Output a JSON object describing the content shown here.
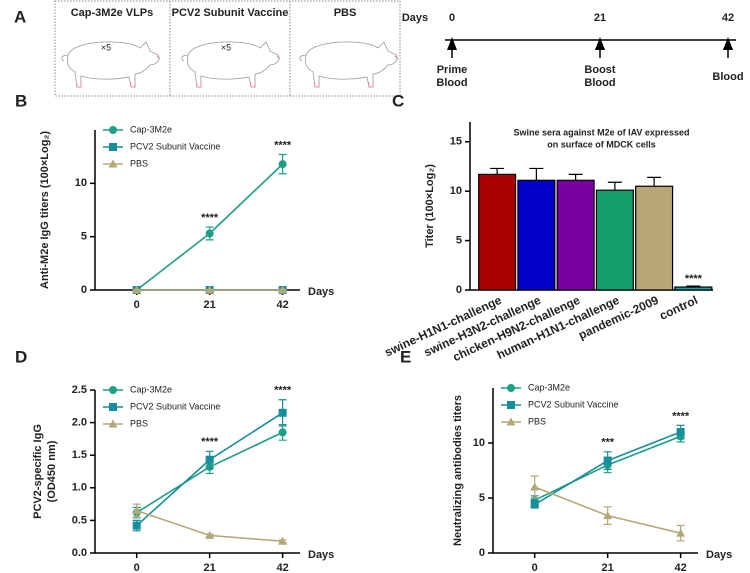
{
  "panel_a": {
    "label": "A",
    "groups": [
      {
        "name": "Cap-3M2e VLPs",
        "doses": "×5"
      },
      {
        "name": "PCV2 Subunit Vaccine",
        "doses": "×5"
      },
      {
        "name": "PBS"
      }
    ],
    "timeline": {
      "axis_label": "Days",
      "points": [
        {
          "day": "0",
          "event": [
            "Prime",
            "Blood"
          ]
        },
        {
          "day": "21",
          "event": [
            "Boost",
            "Blood"
          ]
        },
        {
          "day": "42",
          "event": [
            "Blood"
          ]
        }
      ]
    }
  },
  "chart_data": [
    {
      "type": "line",
      "panel": "B",
      "ylabel": [
        "Anti-M2e IgG titers (100×Log₂)"
      ],
      "xlabel": "Days",
      "x": [
        0,
        21,
        42
      ],
      "xlim": [
        -12,
        47
      ],
      "xticks": [
        0,
        21,
        42
      ],
      "ylim": [
        0,
        15
      ],
      "yticks": [
        0,
        5,
        10
      ],
      "legend": "upper left",
      "series": [
        {
          "name": "Cap-3M2e",
          "color": "#1e9e86",
          "marker": "circle",
          "values": [
            0,
            5.3,
            11.8
          ],
          "errors": [
            0.1,
            0.6,
            0.9
          ]
        },
        {
          "name": "PCV2 Subunit Vaccine",
          "color": "#168e9c",
          "marker": "square",
          "values": [
            0,
            0,
            0
          ],
          "errors": [
            0.05,
            0.05,
            0.05
          ]
        },
        {
          "name": "PBS",
          "color": "#b5a878",
          "marker": "triangle",
          "values": [
            0,
            0,
            0
          ],
          "errors": [
            0.05,
            0.05,
            0.05
          ]
        }
      ],
      "annotations": [
        {
          "x": 21,
          "text": "****"
        },
        {
          "x": 42,
          "text": "****"
        }
      ]
    },
    {
      "type": "bar",
      "panel": "C",
      "title": [
        "Swine sera against M2e of IAV expressed",
        "on surface of MDCK cells"
      ],
      "ylabel": [
        "Titer (100×Log₂)"
      ],
      "categories": [
        "swine-H1N1-challenge",
        "swine-H3N2-challenge",
        "chicken-H9N2-challenge",
        "human-H1N1-challenge",
        "pandemic-2009",
        "control"
      ],
      "values": [
        11.7,
        11.1,
        11.1,
        10.1,
        10.5,
        0.3
      ],
      "errors": [
        0.6,
        1.2,
        0.6,
        0.8,
        0.9,
        0.1
      ],
      "colors": [
        "#a80000",
        "#0000c8",
        "#7800a0",
        "#159e6c",
        "#b8a878",
        "#1aa0a6"
      ],
      "ylim": [
        0,
        17
      ],
      "yticks": [
        0,
        5,
        10,
        15
      ],
      "annotations": [
        {
          "x": "control",
          "text": "****"
        }
      ]
    },
    {
      "type": "line",
      "panel": "D",
      "ylabel": [
        "PCV2-specific IgG",
        "(OD450 nm)"
      ],
      "xlabel": "Days",
      "x": [
        0,
        21,
        42
      ],
      "xlim": [
        -12,
        47
      ],
      "xticks": [
        0,
        21,
        42
      ],
      "ylim": [
        0,
        2.5
      ],
      "yticks": [
        {
          "value": 0,
          "label": "0.0"
        },
        0.5,
        {
          "value": 1,
          "label": "1.0"
        },
        1.5,
        {
          "value": 2,
          "label": "2.0"
        },
        2.5
      ],
      "legend": "upper left",
      "series": [
        {
          "name": "Cap-3M2e",
          "color": "#1e9e86",
          "marker": "circle",
          "values": [
            0.62,
            1.32,
            1.85
          ],
          "errors": [
            0.08,
            0.1,
            0.12
          ]
        },
        {
          "name": "PCV2 Subunit Vaccine",
          "color": "#168e9c",
          "marker": "square",
          "values": [
            0.42,
            1.43,
            2.15
          ],
          "errors": [
            0.08,
            0.13,
            0.2
          ]
        },
        {
          "name": "PBS",
          "color": "#b5a878",
          "marker": "triangle",
          "values": [
            0.65,
            0.27,
            0.18
          ],
          "errors": [
            0.1,
            0.02,
            0.02
          ]
        }
      ],
      "annotations": [
        {
          "x": 21,
          "text": "****"
        },
        {
          "x": 42,
          "text": "****"
        }
      ]
    },
    {
      "type": "line",
      "panel": "E",
      "ylabel": [
        "Neutralizing antibodies titers"
      ],
      "xlabel": "Days",
      "x": [
        0,
        21,
        42
      ],
      "xlim": [
        -12,
        47
      ],
      "xticks": [
        0,
        21,
        42
      ],
      "ylim": [
        0,
        15
      ],
      "yticks": [
        0,
        5,
        10
      ],
      "legend": "upper left",
      "series": [
        {
          "name": "Cap-3M2e",
          "color": "#1e9e86",
          "marker": "circle",
          "values": [
            4.8,
            8.0,
            10.6
          ],
          "errors": [
            0.4,
            0.7,
            0.5
          ]
        },
        {
          "name": "PCV2 Subunit Vaccine",
          "color": "#168e9c",
          "marker": "square",
          "values": [
            4.4,
            8.4,
            11.0
          ],
          "errors": [
            0.3,
            0.8,
            0.6
          ]
        },
        {
          "name": "PBS",
          "color": "#b5a878",
          "marker": "triangle",
          "values": [
            6.0,
            3.4,
            1.8
          ],
          "errors": [
            1.0,
            0.8,
            0.7
          ]
        }
      ],
      "annotations": [
        {
          "x": 21,
          "text": "***"
        },
        {
          "x": 42,
          "text": "****"
        }
      ]
    }
  ]
}
